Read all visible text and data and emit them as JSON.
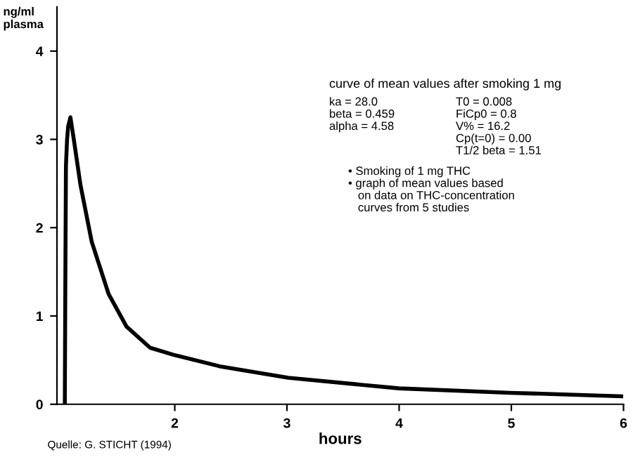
{
  "chart_data": {
    "type": "line",
    "ylabel": "ng/ml\nplasma",
    "xlabel": "hours",
    "x": [
      1.02,
      1.025,
      1.03,
      1.04,
      1.05,
      1.07,
      1.1,
      1.16,
      1.26,
      1.41,
      1.57,
      1.78,
      1.99,
      2.4,
      3.01,
      4.0,
      4.99,
      5.98
    ],
    "series": [
      {
        "color": "#000000",
        "values": [
          0,
          1.5,
          2.7,
          3.0,
          3.15,
          3.25,
          3.0,
          2.48,
          1.84,
          1.25,
          0.88,
          0.64,
          0.56,
          0.43,
          0.3,
          0.18,
          0.13,
          0.09
        ]
      }
    ],
    "xlim": [
      0.95,
      6
    ],
    "ylim": [
      0,
      4.5
    ],
    "xticks": [
      2,
      3,
      4,
      5,
      6
    ],
    "yticks": [
      0,
      1,
      2,
      3,
      4
    ],
    "grid": false,
    "legend": false,
    "marker": "none",
    "line_style": "solid",
    "annotations": [
      "curve of mean values after smoking 1 mg",
      "ka = 28.0\nbeta = 0.459\nalpha = 4.58",
      "T0 = 0.008\nFiCp0 = 0.8\nV% = 16.2\nCp(t=0) = 0.00\nT1/2 beta = 1.51",
      "• Smoking of 1 mg THC\n• graph of mean values based\n   on data on THC-concentration\n   curves from 5 studies",
      "Quelle: G. STICHT (1994)"
    ]
  }
}
